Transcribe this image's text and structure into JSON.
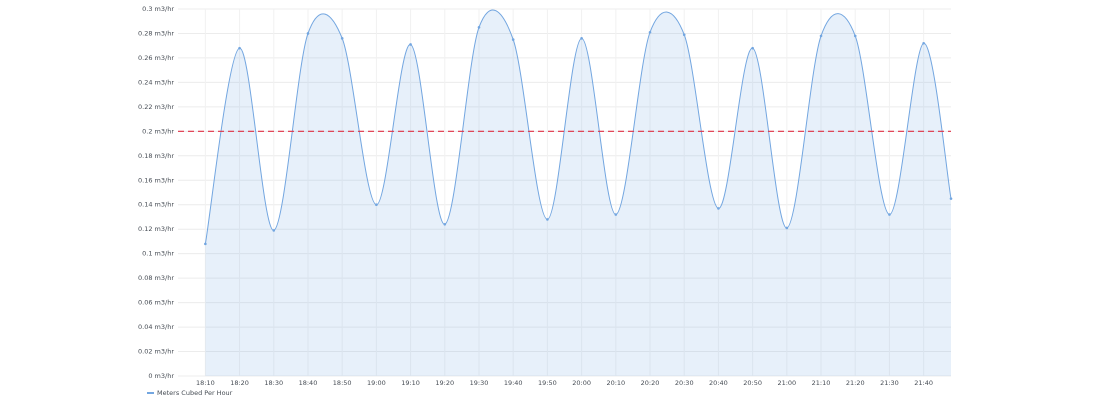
{
  "chart_data": {
    "type": "line",
    "x": [
      "18:10",
      "18:20",
      "18:30",
      "18:40",
      "18:50",
      "19:00",
      "19:10",
      "19:20",
      "19:30",
      "19:40",
      "19:50",
      "20:00",
      "20:10",
      "20:20",
      "20:30",
      "20:40",
      "20:50",
      "21:00",
      "21:10",
      "21:20",
      "21:30",
      "21:40",
      "21:48"
    ],
    "series": [
      {
        "name": "Meters Cubed Per Hour",
        "color": "#73a6e0",
        "values": [
          0.108,
          0.268,
          0.119,
          0.28,
          0.276,
          0.14,
          0.271,
          0.124,
          0.285,
          0.275,
          0.128,
          0.276,
          0.132,
          0.281,
          0.279,
          0.137,
          0.268,
          0.121,
          0.278,
          0.278,
          0.132,
          0.272,
          0.145
        ]
      }
    ],
    "xlim": [
      "18:02",
      "21:48"
    ],
    "xticks": [
      "18:10",
      "18:20",
      "18:30",
      "18:40",
      "18:50",
      "19:00",
      "19:10",
      "19:20",
      "19:30",
      "19:40",
      "19:50",
      "20:00",
      "20:10",
      "20:20",
      "20:30",
      "20:40",
      "20:50",
      "21:00",
      "21:10",
      "21:20",
      "21:30",
      "21:40"
    ],
    "ylim": [
      0,
      0.3
    ],
    "yticks": [
      {
        "value": 0,
        "label": "0 m3/hr"
      },
      {
        "value": 0.02,
        "label": "0.02 m3/hr"
      },
      {
        "value": 0.04,
        "label": "0.04 m3/hr"
      },
      {
        "value": 0.06,
        "label": "0.06 m3/hr"
      },
      {
        "value": 0.08,
        "label": "0.08 m3/hr"
      },
      {
        "value": 0.1,
        "label": "0.1 m3/hr"
      },
      {
        "value": 0.12,
        "label": "0.12 m3/hr"
      },
      {
        "value": 0.14,
        "label": "0.14 m3/hr"
      },
      {
        "value": 0.16,
        "label": "0.16 m3/hr"
      },
      {
        "value": 0.18,
        "label": "0.18 m3/hr"
      },
      {
        "value": 0.2,
        "label": "0.2 m3/hr"
      },
      {
        "value": 0.22,
        "label": "0.22 m3/hr"
      },
      {
        "value": 0.24,
        "label": "0.24 m3/hr"
      },
      {
        "value": 0.26,
        "label": "0.26 m3/hr"
      },
      {
        "value": 0.28,
        "label": "0.28 m3/hr"
      },
      {
        "value": 0.3,
        "label": "0.3 m3/hr"
      }
    ],
    "grid": true,
    "area_fill": true,
    "threshold": {
      "value": 0.2,
      "color": "#e02f44"
    },
    "legend": "bottom-left"
  }
}
